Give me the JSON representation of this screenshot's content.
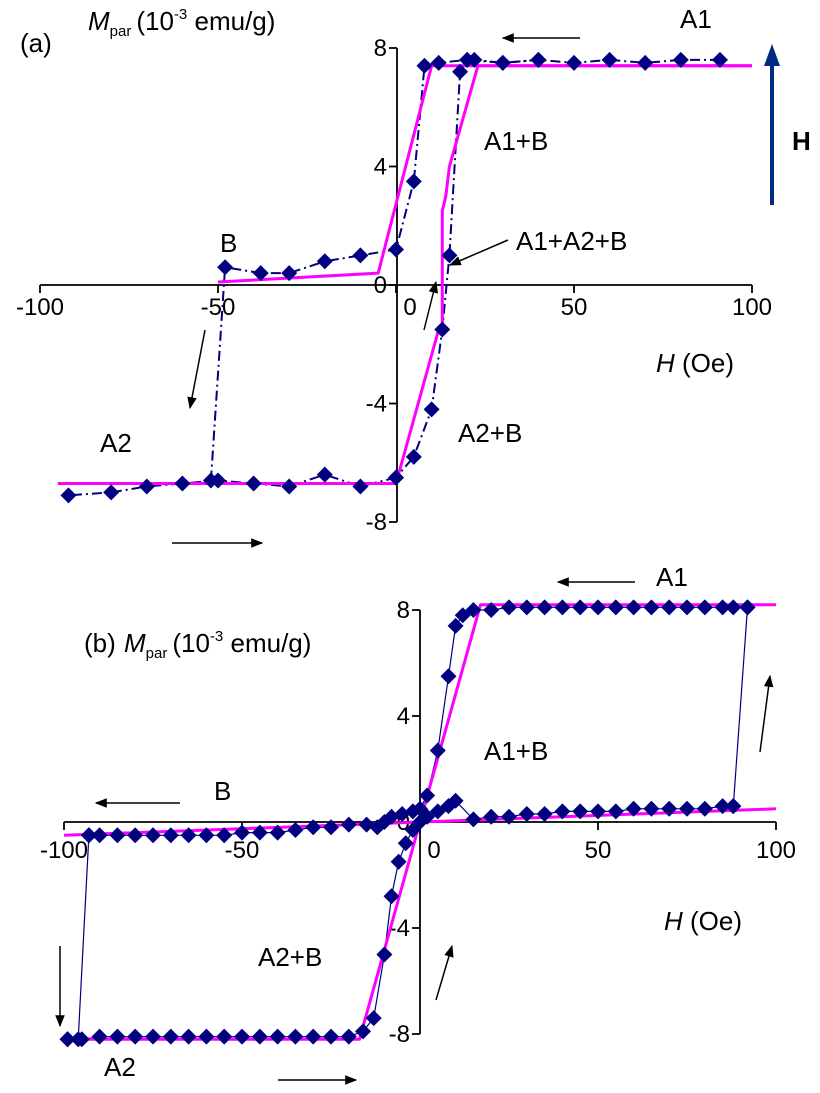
{
  "colors": {
    "measured": "#000080",
    "model": "#ff00ff",
    "axis": "#000000",
    "arrow": "#000000",
    "field_arrow": "#002b80"
  },
  "chart_data": [
    {
      "panel": "(a)",
      "type": "scatter",
      "ylabel_symbol": "M",
      "ylabel_subscript": "par",
      "ylabel_units_pre": "(10",
      "ylabel_units_exp": "-3",
      "ylabel_units_post": " emu/g)",
      "xlabel_symbol": "H",
      "xlabel_units": " (Oe)",
      "xlim": [
        -100,
        100
      ],
      "ylim": [
        -8,
        8
      ],
      "x_ticks": [
        -100,
        -50,
        0,
        50,
        100
      ],
      "y_ticks": [
        -8,
        -4,
        0,
        4,
        8
      ],
      "field_label": "H",
      "annotations": [
        "A1",
        "A1+B",
        "A1+A2+B",
        "B",
        "A2",
        "A2+B"
      ],
      "series": [
        {
          "style": "markers-dashdot",
          "segments": [
            {
              "x": [
                91,
                80,
                70,
                60,
                50,
                40,
                30,
                22,
                20,
                18,
                15,
                13,
                10,
                5,
                0
              ],
              "y": [
                7.6,
                7.6,
                7.5,
                7.6,
                7.5,
                7.6,
                7.5,
                7.6,
                7.6,
                7.2,
                1.0,
                -1.5,
                -4.2,
                -5.8,
                -6.5
              ]
            },
            {
              "x": [
                0,
                -10,
                -20,
                -30,
                -40,
                -50,
                -60,
                -70,
                -80,
                -92
              ],
              "y": [
                -6.5,
                -6.8,
                -6.4,
                -6.8,
                -6.7,
                -6.6,
                -6.7,
                -6.8,
                -7.0,
                -7.1
              ]
            },
            {
              "x": [
                -52,
                -48,
                -38,
                -30,
                -20,
                -10,
                0,
                5,
                8,
                12,
                20,
                30,
                40
              ],
              "y": [
                -6.6,
                0.6,
                0.4,
                0.4,
                0.8,
                1.0,
                1.2,
                3.5,
                7.4,
                7.5,
                7.6,
                7.5,
                7.6
              ]
            }
          ]
        },
        {
          "style": "model-line",
          "segments": [
            {
              "x": [
                100,
                23,
                15,
                14,
                13,
                13,
                12,
                0,
                -95
              ],
              "y": [
                7.4,
                7.4,
                4.0,
                3.0,
                2.5,
                -1.5,
                -1.5,
                -6.7,
                -6.7
              ]
            },
            {
              "x": [
                -50,
                -5,
                10,
                100
              ],
              "y": [
                0.1,
                0.4,
                7.4,
                7.4
              ]
            }
          ]
        }
      ]
    },
    {
      "panel": "(b)",
      "type": "scatter",
      "ylabel_symbol": "M",
      "ylabel_subscript": "par",
      "ylabel_units_pre": "(10",
      "ylabel_units_exp": "-3",
      "ylabel_units_post": " emu/g)",
      "xlabel_symbol": "H",
      "xlabel_units": " (Oe)",
      "xlim": [
        -100,
        100
      ],
      "ylim": [
        -8,
        8
      ],
      "x_ticks": [
        -100,
        -50,
        0,
        50,
        100
      ],
      "y_ticks": [
        -8,
        -4,
        0,
        4,
        8
      ],
      "annotations": [
        "A1",
        "A1+B",
        "B",
        "A2",
        "A2+B"
      ],
      "series": [
        {
          "style": "markers-line",
          "segments": [
            {
              "x": [
                92,
                88,
                85,
                80,
                75,
                70,
                65,
                60,
                55,
                50,
                45,
                40,
                35,
                30,
                25,
                20,
                15,
                12,
                10,
                8,
                5,
                2,
                0,
                -2,
                -5,
                -8,
                -10,
                -12,
                -15,
                -20,
                -25,
                -30,
                -35,
                -40,
                -45,
                -50,
                -55,
                -60,
                -65,
                -70,
                -75,
                -80,
                -85,
                -90,
                -93
              ],
              "y": [
                8.1,
                8.1,
                8.1,
                8.1,
                8.1,
                8.1,
                8.1,
                8.1,
                8.1,
                8.1,
                8.1,
                8.1,
                8.1,
                8.1,
                8.1,
                8.0,
                8.0,
                7.8,
                7.4,
                5.5,
                2.7,
                1.0,
                0.5,
                0.4,
                0.3,
                0.2,
                0.0,
                -0.2,
                -0.1,
                -0.1,
                -0.2,
                -0.2,
                -0.3,
                -0.4,
                -0.4,
                -0.4,
                -0.5,
                -0.5,
                -0.5,
                -0.5,
                -0.5,
                -0.5,
                -0.5,
                -0.5,
                -0.5
              ]
            },
            {
              "x": [
                -93,
                -96,
                -99
              ],
              "y": [
                -0.5,
                -8.2,
                -8.2
              ]
            },
            {
              "x": [
                -99,
                -95,
                -90,
                -85,
                -80,
                -75,
                -70,
                -65,
                -60,
                -55,
                -50,
                -45,
                -40,
                -35,
                -30,
                -25,
                -20,
                -16,
                -13,
                -10,
                -8,
                -6,
                -4,
                -2,
                0,
                2,
                5,
                8,
                10,
                15,
                20,
                25,
                30,
                35,
                40,
                45,
                50,
                55,
                60,
                65,
                70,
                75,
                80,
                85,
                88
              ],
              "y": [
                -8.2,
                -8.2,
                -8.1,
                -8.1,
                -8.1,
                -8.1,
                -8.1,
                -8.1,
                -8.1,
                -8.1,
                -8.1,
                -8.1,
                -8.1,
                -8.1,
                -8.1,
                -8.1,
                -8.1,
                -7.9,
                -7.4,
                -5.0,
                -2.8,
                -1.5,
                -0.8,
                -0.3,
                0.0,
                0.2,
                0.4,
                0.6,
                0.8,
                0.1,
                0.2,
                0.2,
                0.3,
                0.3,
                0.4,
                0.4,
                0.4,
                0.4,
                0.5,
                0.5,
                0.5,
                0.5,
                0.5,
                0.6,
                0.6
              ]
            },
            {
              "x": [
                88,
                92
              ],
              "y": [
                0.6,
                8.1
              ]
            }
          ]
        },
        {
          "style": "model-line",
          "segments": [
            {
              "x": [
                100,
                17,
                -17,
                -100
              ],
              "y": [
                8.2,
                8.2,
                -8.2,
                -8.2
              ]
            },
            {
              "x": [
                -100,
                100
              ],
              "y": [
                -0.5,
                0.5
              ]
            }
          ]
        }
      ]
    }
  ]
}
